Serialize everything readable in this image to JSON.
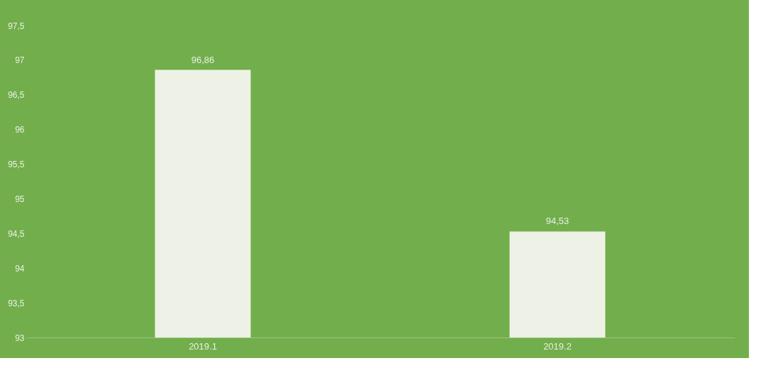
{
  "chart_data": {
    "type": "bar",
    "categories": [
      "2019.1",
      "2019.2"
    ],
    "values": [
      96.86,
      94.53
    ],
    "value_labels": [
      "96,86",
      "94,53"
    ],
    "color": "#eef2e6",
    "ylim": [
      93,
      97.5
    ],
    "yticks": [
      93,
      {
        "value": 93.5,
        "label": "93,5"
      },
      94,
      {
        "value": 94.5,
        "label": "94,5"
      },
      95,
      {
        "value": 95.5,
        "label": "95,5"
      },
      96,
      {
        "value": 96.5,
        "label": "96,5"
      },
      97,
      {
        "value": 97.5,
        "label": "97,5"
      }
    ]
  }
}
